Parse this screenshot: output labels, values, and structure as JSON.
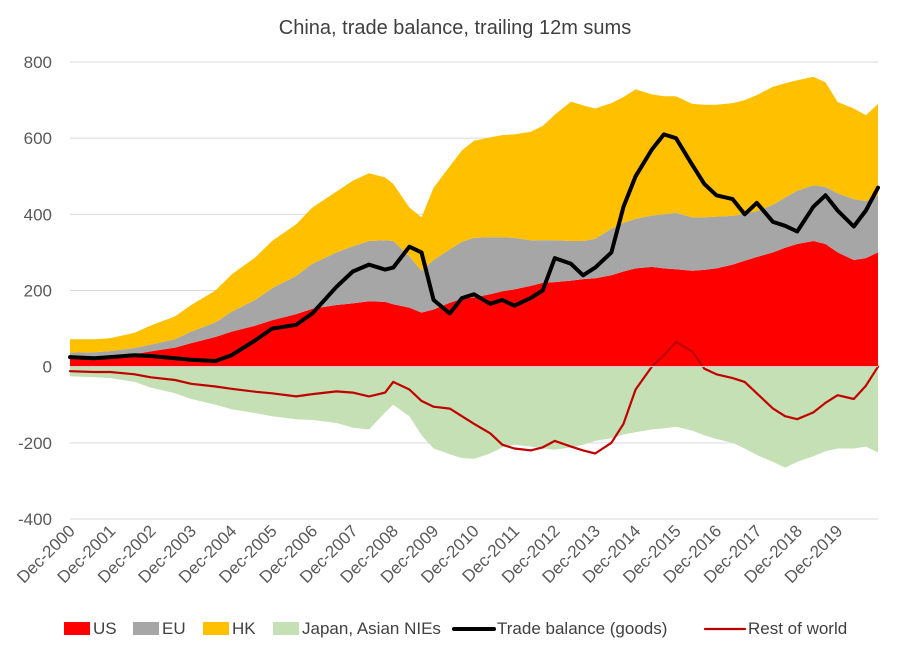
{
  "chart_data": {
    "type": "area",
    "title": "China, trade balance, trailing 12m sums",
    "xlabel": "",
    "ylabel": "",
    "ylim": [
      -400,
      800
    ],
    "yticks": [
      -400,
      -200,
      0,
      200,
      400,
      600,
      800
    ],
    "ytick_labels": [
      "-400",
      "-200",
      "0",
      "200",
      "400",
      "600",
      "800"
    ],
    "x_range": [
      2000.9,
      2020.9
    ],
    "xtick_labels": [
      "Dec-2000",
      "Dec-2001",
      "Dec-2002",
      "Dec-2003",
      "Dec-2004",
      "Dec-2005",
      "Dec-2006",
      "Dec-2007",
      "Dec-2008",
      "Dec-2009",
      "Dec-2010",
      "Dec-2011",
      "Dec-2012",
      "Dec-2013",
      "Dec-2014",
      "Dec-2015",
      "Dec-2016",
      "Dec-2017",
      "Dec-2018",
      "Dec-2019"
    ],
    "grid": "horizontal",
    "legend_position": "bottom",
    "x": [
      2000.9,
      2001.5,
      2001.9,
      2002.5,
      2002.9,
      2003.5,
      2003.9,
      2004.5,
      2004.9,
      2005.5,
      2005.9,
      2006.5,
      2006.9,
      2007.5,
      2007.9,
      2008.3,
      2008.7,
      2008.9,
      2009.3,
      2009.6,
      2009.9,
      2010.3,
      2010.6,
      2010.9,
      2011.3,
      2011.6,
      2011.9,
      2012.3,
      2012.6,
      2012.9,
      2013.3,
      2013.6,
      2013.9,
      2014.3,
      2014.6,
      2014.9,
      2015.3,
      2015.6,
      2015.9,
      2016.3,
      2016.6,
      2016.9,
      2017.3,
      2017.6,
      2017.9,
      2018.3,
      2018.6,
      2018.9,
      2019.3,
      2019.6,
      2019.9,
      2020.3,
      2020.6,
      2020.9
    ],
    "series": [
      {
        "name": "US",
        "kind": "stacked-area-positive",
        "color": "#ff0000",
        "values": [
          22,
          24,
          27,
          33,
          40,
          50,
          62,
          78,
          92,
          108,
          122,
          138,
          152,
          162,
          166,
          172,
          170,
          164,
          155,
          142,
          150,
          168,
          178,
          182,
          190,
          198,
          203,
          212,
          220,
          222,
          226,
          230,
          232,
          240,
          250,
          258,
          262,
          258,
          256,
          252,
          254,
          258,
          268,
          278,
          288,
          300,
          312,
          322,
          330,
          322,
          300,
          280,
          285,
          300
        ]
      },
      {
        "name": "EU",
        "kind": "stacked-area-positive",
        "color": "#a6a6a6",
        "values": [
          15,
          14,
          14,
          16,
          18,
          22,
          30,
          38,
          52,
          68,
          84,
          100,
          118,
          138,
          150,
          158,
          162,
          166,
          135,
          110,
          130,
          140,
          150,
          156,
          150,
          142,
          135,
          120,
          112,
          110,
          104,
          100,
          104,
          122,
          128,
          130,
          135,
          142,
          148,
          140,
          138,
          136,
          128,
          124,
          120,
          125,
          132,
          140,
          146,
          150,
          155,
          160,
          150,
          150
        ]
      },
      {
        "name": "HK",
        "kind": "stacked-area-positive",
        "color": "#ffc000",
        "values": [
          35,
          34,
          34,
          40,
          50,
          60,
          70,
          84,
          98,
          112,
          124,
          136,
          148,
          160,
          172,
          178,
          165,
          150,
          128,
          140,
          190,
          218,
          240,
          255,
          262,
          268,
          272,
          285,
          300,
          330,
          366,
          356,
          342,
          330,
          330,
          340,
          318,
          310,
          306,
          298,
          296,
          294,
          296,
          298,
          305,
          310,
          300,
          290,
          285,
          275,
          240,
          238,
          225,
          240
        ]
      },
      {
        "name": "Japan, Asian NIEs",
        "kind": "area-negative",
        "color": "#c5e0b4",
        "values": [
          -25,
          -28,
          -30,
          -40,
          -55,
          -70,
          -85,
          -100,
          -112,
          -122,
          -130,
          -138,
          -140,
          -148,
          -160,
          -165,
          -120,
          -100,
          -130,
          -180,
          -215,
          -230,
          -240,
          -242,
          -228,
          -212,
          -205,
          -210,
          -215,
          -218,
          -212,
          -205,
          -195,
          -188,
          -178,
          -172,
          -165,
          -162,
          -158,
          -168,
          -180,
          -190,
          -200,
          -215,
          -232,
          -250,
          -265,
          -250,
          -235,
          -222,
          -215,
          -215,
          -210,
          -225
        ]
      },
      {
        "name": "Trade balance (goods)",
        "kind": "line",
        "color": "#000000",
        "values": [
          25,
          22,
          25,
          30,
          28,
          22,
          18,
          15,
          30,
          70,
          100,
          110,
          140,
          210,
          250,
          268,
          255,
          260,
          315,
          300,
          175,
          140,
          180,
          190,
          165,
          175,
          160,
          180,
          200,
          285,
          270,
          240,
          260,
          300,
          420,
          500,
          570,
          610,
          600,
          530,
          480,
          450,
          440,
          400,
          430,
          380,
          370,
          355,
          420,
          450,
          410,
          368,
          410,
          470
        ]
      },
      {
        "name": "Rest of world",
        "kind": "line",
        "color": "#c00000",
        "values": [
          -12,
          -14,
          -14,
          -20,
          -28,
          -35,
          -45,
          -52,
          -58,
          -66,
          -70,
          -78,
          -72,
          -65,
          -68,
          -78,
          -68,
          -40,
          -60,
          -90,
          -105,
          -110,
          -130,
          -150,
          -175,
          -205,
          -215,
          -220,
          -212,
          -195,
          -210,
          -220,
          -228,
          -200,
          -150,
          -60,
          0,
          30,
          65,
          40,
          -5,
          -20,
          -30,
          -40,
          -70,
          -110,
          -130,
          -138,
          -120,
          -95,
          -75,
          -85,
          -50,
          0
        ]
      }
    ]
  }
}
